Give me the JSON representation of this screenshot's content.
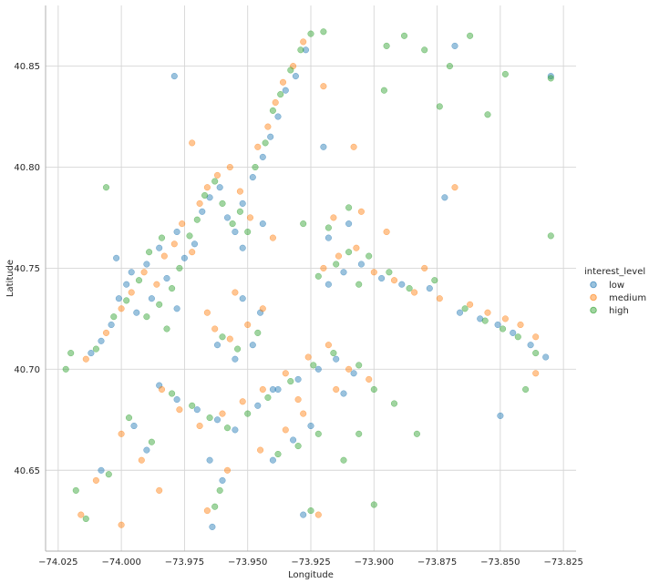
{
  "chart_data": {
    "type": "scatter",
    "xlabel": "Longitude",
    "ylabel": "Latitude",
    "xlim": [
      -74.03,
      -73.82
    ],
    "ylim": [
      40.61,
      40.88
    ],
    "xticks": [
      -74.025,
      -74.0,
      -73.975,
      -73.95,
      -73.925,
      -73.9,
      -73.875,
      -73.85,
      -73.825
    ],
    "xtick_labels": [
      "−74.025",
      "−74.000",
      "−73.975",
      "−73.950",
      "−73.925",
      "−73.900",
      "−73.875",
      "−73.850",
      "−73.825"
    ],
    "yticks": [
      40.65,
      40.7,
      40.75,
      40.8,
      40.85
    ],
    "ytick_labels": [
      "40.65",
      "40.70",
      "40.75",
      "40.80",
      "40.85"
    ],
    "grid": true,
    "legend": {
      "title": "interest_level",
      "placement": "right"
    },
    "series": [
      {
        "name": "low",
        "color": "#1f77b4",
        "points": [
          [
            -74.012,
            40.708
          ],
          [
            -74.008,
            40.714
          ],
          [
            -74.004,
            40.722
          ],
          [
            -74.001,
            40.735
          ],
          [
            -73.998,
            40.742
          ],
          [
            -73.994,
            40.728
          ],
          [
            -73.99,
            40.752
          ],
          [
            -73.985,
            40.76
          ],
          [
            -73.982,
            40.745
          ],
          [
            -73.978,
            40.768
          ],
          [
            -73.975,
            40.755
          ],
          [
            -73.971,
            40.762
          ],
          [
            -73.968,
            40.778
          ],
          [
            -73.965,
            40.785
          ],
          [
            -73.961,
            40.79
          ],
          [
            -73.958,
            40.775
          ],
          [
            -73.955,
            40.768
          ],
          [
            -73.952,
            40.782
          ],
          [
            -73.948,
            40.795
          ],
          [
            -73.944,
            40.805
          ],
          [
            -73.941,
            40.815
          ],
          [
            -73.938,
            40.825
          ],
          [
            -73.935,
            40.838
          ],
          [
            -73.931,
            40.845
          ],
          [
            -73.927,
            40.858
          ],
          [
            -73.979,
            40.845
          ],
          [
            -73.952,
            40.735
          ],
          [
            -73.945,
            40.728
          ],
          [
            -73.962,
            40.712
          ],
          [
            -73.955,
            40.705
          ],
          [
            -73.948,
            40.712
          ],
          [
            -73.985,
            40.692
          ],
          [
            -73.978,
            40.685
          ],
          [
            -73.97,
            40.68
          ],
          [
            -73.962,
            40.675
          ],
          [
            -73.955,
            40.67
          ],
          [
            -73.946,
            40.682
          ],
          [
            -73.938,
            40.69
          ],
          [
            -73.93,
            40.695
          ],
          [
            -73.922,
            40.7
          ],
          [
            -73.915,
            40.705
          ],
          [
            -73.908,
            40.698
          ],
          [
            -73.918,
            40.742
          ],
          [
            -73.912,
            40.748
          ],
          [
            -73.905,
            40.752
          ],
          [
            -73.897,
            40.745
          ],
          [
            -73.889,
            40.742
          ],
          [
            -73.878,
            40.74
          ],
          [
            -73.866,
            40.728
          ],
          [
            -73.858,
            40.725
          ],
          [
            -73.851,
            40.722
          ],
          [
            -73.845,
            40.718
          ],
          [
            -73.838,
            40.712
          ],
          [
            -73.832,
            40.706
          ],
          [
            -73.85,
            40.677
          ],
          [
            -73.96,
            40.645
          ],
          [
            -73.964,
            40.622
          ],
          [
            -73.99,
            40.66
          ],
          [
            -74.008,
            40.65
          ],
          [
            -73.995,
            40.672
          ],
          [
            -73.928,
            40.628
          ],
          [
            -73.94,
            40.655
          ],
          [
            -73.932,
            40.665
          ],
          [
            -73.925,
            40.672
          ],
          [
            -73.965,
            40.655
          ],
          [
            -73.978,
            40.73
          ],
          [
            -73.988,
            40.735
          ],
          [
            -73.996,
            40.748
          ],
          [
            -74.002,
            40.755
          ],
          [
            -73.952,
            40.76
          ],
          [
            -73.944,
            40.772
          ],
          [
            -73.91,
            40.772
          ],
          [
            -73.918,
            40.765
          ],
          [
            -73.94,
            40.69
          ],
          [
            -73.912,
            40.688
          ],
          [
            -73.83,
            40.845
          ],
          [
            -73.868,
            40.86
          ],
          [
            -73.872,
            40.785
          ],
          [
            -73.92,
            40.81
          ]
        ]
      },
      {
        "name": "medium",
        "color": "#ff7f0e",
        "points": [
          [
            -74.014,
            40.705
          ],
          [
            -74.006,
            40.718
          ],
          [
            -74.0,
            40.73
          ],
          [
            -73.996,
            40.738
          ],
          [
            -73.991,
            40.748
          ],
          [
            -73.986,
            40.742
          ],
          [
            -73.983,
            40.756
          ],
          [
            -73.979,
            40.762
          ],
          [
            -73.976,
            40.772
          ],
          [
            -73.972,
            40.758
          ],
          [
            -73.969,
            40.782
          ],
          [
            -73.966,
            40.79
          ],
          [
            -73.962,
            40.796
          ],
          [
            -73.957,
            40.8
          ],
          [
            -73.953,
            40.788
          ],
          [
            -73.949,
            40.775
          ],
          [
            -73.946,
            40.81
          ],
          [
            -73.942,
            40.82
          ],
          [
            -73.939,
            40.832
          ],
          [
            -73.936,
            40.842
          ],
          [
            -73.932,
            40.85
          ],
          [
            -73.928,
            40.862
          ],
          [
            -73.963,
            40.72
          ],
          [
            -73.957,
            40.715
          ],
          [
            -73.95,
            40.722
          ],
          [
            -73.944,
            40.73
          ],
          [
            -73.984,
            40.69
          ],
          [
            -73.977,
            40.68
          ],
          [
            -73.969,
            40.672
          ],
          [
            -73.96,
            40.678
          ],
          [
            -73.952,
            40.684
          ],
          [
            -73.944,
            40.69
          ],
          [
            -73.935,
            40.698
          ],
          [
            -73.926,
            40.706
          ],
          [
            -73.918,
            40.712
          ],
          [
            -73.91,
            40.7
          ],
          [
            -73.902,
            40.695
          ],
          [
            -73.92,
            40.75
          ],
          [
            -73.914,
            40.756
          ],
          [
            -73.907,
            40.76
          ],
          [
            -73.9,
            40.748
          ],
          [
            -73.892,
            40.744
          ],
          [
            -73.884,
            40.738
          ],
          [
            -73.862,
            40.732
          ],
          [
            -73.855,
            40.728
          ],
          [
            -73.848,
            40.725
          ],
          [
            -73.842,
            40.722
          ],
          [
            -73.836,
            40.716
          ],
          [
            -73.836,
            40.698
          ],
          [
            -73.868,
            40.79
          ],
          [
            -73.958,
            40.65
          ],
          [
            -73.966,
            40.63
          ],
          [
            -73.992,
            40.655
          ],
          [
            -74.01,
            40.645
          ],
          [
            -74.0,
            40.668
          ],
          [
            -73.922,
            40.628
          ],
          [
            -73.945,
            40.66
          ],
          [
            -73.935,
            40.67
          ],
          [
            -73.928,
            40.678
          ],
          [
            -73.972,
            40.812
          ],
          [
            -73.92,
            40.84
          ],
          [
            -73.94,
            40.765
          ],
          [
            -73.916,
            40.775
          ],
          [
            -73.905,
            40.778
          ],
          [
            -73.895,
            40.768
          ],
          [
            -73.88,
            40.75
          ],
          [
            -73.874,
            40.735
          ],
          [
            -74.0,
            40.623
          ],
          [
            -74.016,
            40.628
          ],
          [
            -73.985,
            40.64
          ],
          [
            -73.955,
            40.738
          ],
          [
            -73.966,
            40.728
          ],
          [
            -73.915,
            40.69
          ],
          [
            -73.93,
            40.685
          ],
          [
            -73.908,
            40.81
          ]
        ]
      },
      {
        "name": "high",
        "color": "#2ca02c",
        "points": [
          [
            -74.01,
            40.71
          ],
          [
            -74.003,
            40.726
          ],
          [
            -73.998,
            40.734
          ],
          [
            -73.993,
            40.744
          ],
          [
            -73.989,
            40.758
          ],
          [
            -73.984,
            40.765
          ],
          [
            -73.98,
            40.74
          ],
          [
            -73.977,
            40.75
          ],
          [
            -73.973,
            40.766
          ],
          [
            -73.97,
            40.774
          ],
          [
            -73.967,
            40.786
          ],
          [
            -73.963,
            40.793
          ],
          [
            -73.96,
            40.782
          ],
          [
            -73.956,
            40.772
          ],
          [
            -73.953,
            40.778
          ],
          [
            -73.95,
            40.768
          ],
          [
            -73.947,
            40.8
          ],
          [
            -73.943,
            40.812
          ],
          [
            -73.94,
            40.828
          ],
          [
            -73.937,
            40.836
          ],
          [
            -73.933,
            40.848
          ],
          [
            -73.929,
            40.858
          ],
          [
            -73.925,
            40.866
          ],
          [
            -73.92,
            40.867
          ],
          [
            -73.985,
            40.732
          ],
          [
            -73.99,
            40.726
          ],
          [
            -73.982,
            40.72
          ],
          [
            -73.96,
            40.716
          ],
          [
            -73.954,
            40.71
          ],
          [
            -73.946,
            40.718
          ],
          [
            -73.98,
            40.688
          ],
          [
            -73.972,
            40.682
          ],
          [
            -73.965,
            40.676
          ],
          [
            -73.958,
            40.671
          ],
          [
            -73.95,
            40.678
          ],
          [
            -73.942,
            40.686
          ],
          [
            -73.933,
            40.694
          ],
          [
            -73.924,
            40.702
          ],
          [
            -73.916,
            40.708
          ],
          [
            -73.906,
            40.702
          ],
          [
            -73.922,
            40.746
          ],
          [
            -73.915,
            40.752
          ],
          [
            -73.91,
            40.758
          ],
          [
            -73.902,
            40.756
          ],
          [
            -73.894,
            40.748
          ],
          [
            -73.886,
            40.74
          ],
          [
            -73.876,
            40.744
          ],
          [
            -73.864,
            40.73
          ],
          [
            -73.856,
            40.724
          ],
          [
            -73.849,
            40.72
          ],
          [
            -73.843,
            40.716
          ],
          [
            -73.836,
            40.708
          ],
          [
            -73.83,
            40.766
          ],
          [
            -73.83,
            40.844
          ],
          [
            -73.84,
            40.69
          ],
          [
            -73.961,
            40.64
          ],
          [
            -73.963,
            40.632
          ],
          [
            -73.988,
            40.664
          ],
          [
            -74.005,
            40.648
          ],
          [
            -73.997,
            40.676
          ],
          [
            -73.925,
            40.63
          ],
          [
            -73.938,
            40.658
          ],
          [
            -73.93,
            40.662
          ],
          [
            -73.922,
            40.668
          ],
          [
            -73.9,
            40.633
          ],
          [
            -73.895,
            40.86
          ],
          [
            -73.888,
            40.865
          ],
          [
            -73.88,
            40.858
          ],
          [
            -73.87,
            40.85
          ],
          [
            -73.862,
            40.865
          ],
          [
            -73.855,
            40.826
          ],
          [
            -73.848,
            40.846
          ],
          [
            -73.874,
            40.83
          ],
          [
            -73.896,
            40.838
          ],
          [
            -73.91,
            40.78
          ],
          [
            -73.918,
            40.77
          ],
          [
            -73.928,
            40.772
          ],
          [
            -73.906,
            40.742
          ],
          [
            -73.9,
            40.69
          ],
          [
            -73.892,
            40.683
          ],
          [
            -73.883,
            40.668
          ],
          [
            -74.02,
            40.708
          ],
          [
            -74.022,
            40.7
          ],
          [
            -74.018,
            40.64
          ],
          [
            -74.014,
            40.626
          ],
          [
            -74.006,
            40.79
          ],
          [
            -73.906,
            40.668
          ],
          [
            -73.912,
            40.655
          ]
        ]
      }
    ]
  }
}
